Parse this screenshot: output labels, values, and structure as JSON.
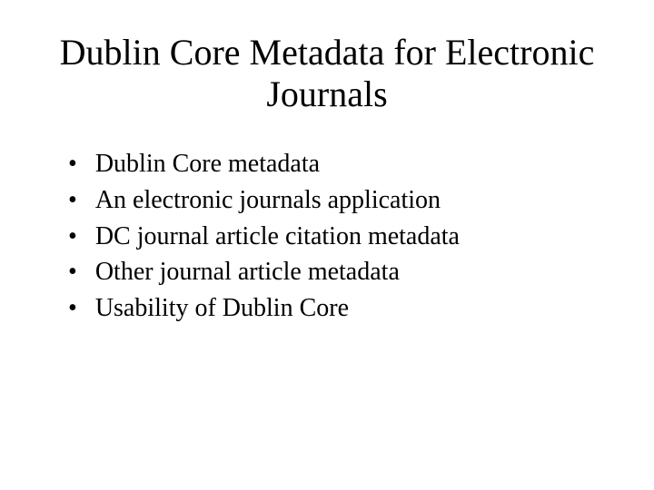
{
  "slide": {
    "title": "Dublin Core Metadata for Electronic Journals",
    "bullets": [
      "Dublin Core metadata",
      "An electronic journals application",
      "DC journal article citation metadata",
      "Other journal article metadata",
      "Usability of Dublin Core"
    ],
    "styling": {
      "background_color": "#ffffff",
      "text_color": "#000000",
      "title_fontsize": 40,
      "bullet_fontsize": 28,
      "font_family": "Times New Roman",
      "bullet_char": "•"
    }
  }
}
